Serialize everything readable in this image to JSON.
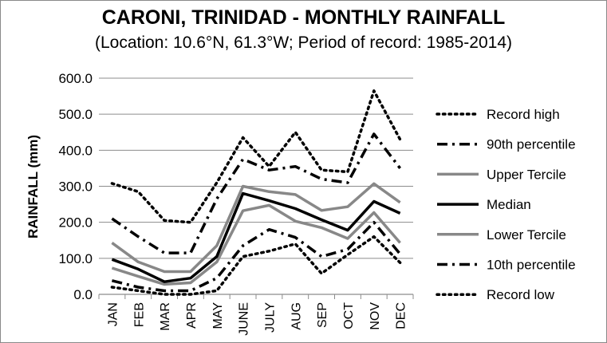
{
  "chart_data": {
    "type": "line",
    "title": "CARONI, TRINIDAD - MONTHLY RAINFALL",
    "subtitle": "(Location: 10.6°N, 61.3°W; Period of record: 1985-2014)",
    "xlabel": "",
    "ylabel": "RAINFALL (mm)",
    "ylim": [
      0,
      600
    ],
    "yticks": [
      "0.0",
      "100.0",
      "200.0",
      "300.0",
      "400.0",
      "500.0",
      "600.0"
    ],
    "grid": "horizontal",
    "legend_position": "right",
    "categories": [
      "JAN",
      "FEB",
      "MAR",
      "APR",
      "MAY",
      "JUNE",
      "JULY",
      "AUG",
      "SEP",
      "OCT",
      "NOV",
      "DEC"
    ],
    "series": [
      {
        "name": "Record high",
        "style": "dotted",
        "color": "#000000",
        "width": 3.5,
        "values": [
          308,
          285,
          205,
          200,
          310,
          435,
          355,
          450,
          345,
          340,
          565,
          430
        ]
      },
      {
        "name": "90th percentile",
        "style": "dashdot",
        "color": "#000000",
        "width": 3.5,
        "values": [
          210,
          160,
          115,
          115,
          265,
          375,
          345,
          355,
          320,
          310,
          445,
          350
        ]
      },
      {
        "name": "Upper Tercile",
        "style": "solid",
        "color": "#888888",
        "width": 3.5,
        "values": [
          143,
          90,
          63,
          63,
          135,
          300,
          285,
          277,
          233,
          243,
          307,
          255
        ]
      },
      {
        "name": "Median",
        "style": "solid",
        "color": "#000000",
        "width": 3.5,
        "values": [
          97,
          70,
          35,
          45,
          105,
          280,
          260,
          238,
          207,
          178,
          258,
          225
        ]
      },
      {
        "name": "Lower Tercile",
        "style": "solid",
        "color": "#888888",
        "width": 3.5,
        "values": [
          73,
          50,
          28,
          32,
          90,
          232,
          247,
          203,
          185,
          155,
          227,
          143
        ]
      },
      {
        "name": "10th percentile",
        "style": "dashdot",
        "color": "#000000",
        "width": 3.5,
        "values": [
          38,
          20,
          10,
          10,
          45,
          135,
          180,
          158,
          105,
          125,
          200,
          112
        ]
      },
      {
        "name": "Record low",
        "style": "dotted",
        "color": "#000000",
        "width": 3.5,
        "values": [
          20,
          10,
          0,
          0,
          10,
          105,
          120,
          140,
          58,
          110,
          160,
          88
        ]
      }
    ]
  }
}
